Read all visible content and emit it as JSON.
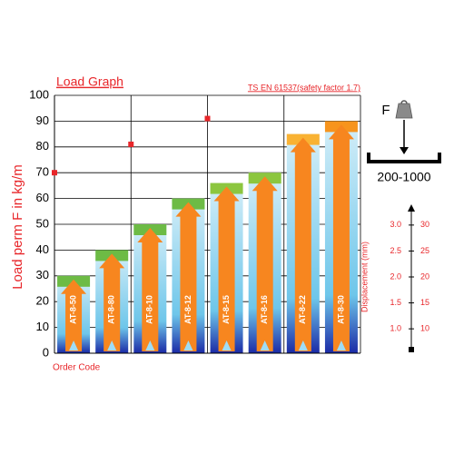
{
  "chart_data": {
    "type": "bar",
    "title": "Load Graph",
    "subtitle": "TS EN 61537(safety factor 1.7)",
    "y_label": "Load perm F in kg/m",
    "x_label": "Order Code",
    "categories": [
      "AT-8-50",
      "AT-8-80",
      "AT-8-10",
      "AT-8-12",
      "AT-8-15",
      "AT-8-16",
      "AT-8-22",
      "AT-8-30"
    ],
    "values": [
      30,
      40,
      50,
      60,
      66,
      70,
      85,
      90
    ],
    "color": "#f7861f",
    "cap_colors": [
      "#6dbb45",
      "#6dbb45",
      "#6dbb45",
      "#6dbb45",
      "#8cc63f",
      "#8cc63f",
      "#f9b233",
      "#f7941d"
    ],
    "ylim": [
      0,
      100
    ],
    "yticks": [
      0,
      10,
      20,
      30,
      40,
      50,
      60,
      70,
      80,
      90,
      100
    ],
    "grid": true,
    "markers": {
      "color": "#e8262a",
      "positions": [
        0,
        2,
        4
      ],
      "values": [
        70,
        81,
        91
      ]
    },
    "side_panel": {
      "force_label": "F",
      "range_label": "200-1000",
      "axis_title": "Displacement (mm)",
      "ylim": [
        0.6,
        3.4
      ],
      "yticks": [
        {
          "value": 1,
          "label": "1.0"
        },
        {
          "value": 1.5,
          "label": "1.5"
        },
        {
          "value": 2,
          "label": "2.0"
        },
        {
          "value": 2.5,
          "label": "2.5"
        },
        {
          "value": 3,
          "label": "3.0"
        }
      ],
      "y2lim": [
        6,
        34
      ],
      "y2ticks": [
        10,
        15,
        20,
        25,
        30
      ]
    }
  }
}
